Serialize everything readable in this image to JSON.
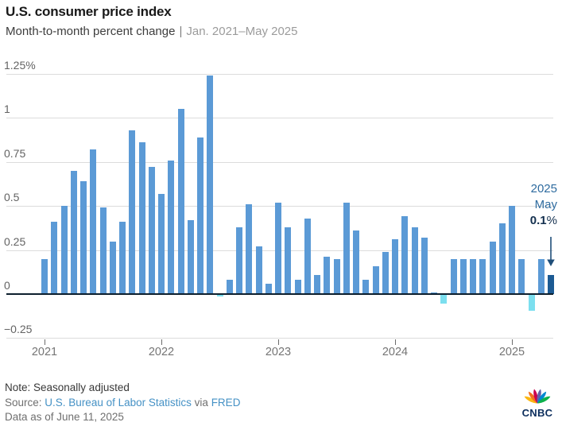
{
  "header": {
    "title": "U.S. consumer price index",
    "subtitle": "Month-to-month percent change",
    "separator": "|",
    "date_range": "Jan. 2021–May 2025"
  },
  "chart_data": {
    "type": "bar",
    "title": "U.S. consumer price index",
    "subtitle": "Month-to-month percent change | Jan. 2021–May 2025",
    "unit": "percent",
    "grid": true,
    "ylim": [
      -0.35,
      1.3
    ],
    "x": [
      "Jan 2021",
      "Feb 2021",
      "Mar 2021",
      "Apr 2021",
      "May 2021",
      "Jun 2021",
      "Jul 2021",
      "Aug 2021",
      "Sep 2021",
      "Oct 2021",
      "Nov 2021",
      "Dec 2021",
      "Jan 2022",
      "Feb 2022",
      "Mar 2022",
      "Apr 2022",
      "May 2022",
      "Jun 2022",
      "Jul 2022",
      "Aug 2022",
      "Sep 2022",
      "Oct 2022",
      "Nov 2022",
      "Dec 2022",
      "Jan 2023",
      "Feb 2023",
      "Mar 2023",
      "Apr 2023",
      "May 2023",
      "Jun 2023",
      "Jul 2023",
      "Aug 2023",
      "Sep 2023",
      "Oct 2023",
      "Nov 2023",
      "Dec 2023",
      "Jan 2024",
      "Feb 2024",
      "Mar 2024",
      "Apr 2024",
      "May 2024",
      "Jun 2024",
      "Jul 2024",
      "Aug 2024",
      "Sep 2024",
      "Oct 2024",
      "Nov 2024",
      "Dec 2024",
      "Jan 2025",
      "Feb 2025",
      "Mar 2025",
      "Apr 2025",
      "May 2025"
    ],
    "values": [
      0.2,
      0.41,
      0.5,
      0.7,
      0.64,
      0.82,
      0.49,
      0.3,
      0.41,
      0.93,
      0.86,
      0.72,
      0.57,
      0.76,
      1.05,
      0.42,
      0.89,
      1.24,
      -0.01,
      0.08,
      0.38,
      0.51,
      0.27,
      0.06,
      0.52,
      0.38,
      0.08,
      0.43,
      0.11,
      0.21,
      0.2,
      0.52,
      0.36,
      0.08,
      0.16,
      0.24,
      0.31,
      0.44,
      0.38,
      0.32,
      0.01,
      -0.05,
      0.2,
      0.2,
      0.2,
      0.2,
      0.3,
      0.4,
      0.5,
      0.2,
      -0.09,
      0.2,
      0.11
    ],
    "y_ticks": [
      {
        "label": "1.25%",
        "value": 1.25
      },
      {
        "label": "1",
        "value": 1
      },
      {
        "label": "0.75",
        "value": 0.75
      },
      {
        "label": "0.5",
        "value": 0.5
      },
      {
        "label": "0.25",
        "value": 0.25
      },
      {
        "label": "0",
        "value": 0
      },
      {
        "label": "−0.25",
        "value": -0.25
      }
    ],
    "x_ticks": [
      {
        "label": "2021",
        "month_index": 0
      },
      {
        "label": "2022",
        "month_index": 12
      },
      {
        "label": "2023",
        "month_index": 24
      },
      {
        "label": "2024",
        "month_index": 36
      },
      {
        "label": "2025",
        "month_index": 48
      }
    ],
    "colors": {
      "bar": "#5b9ad6",
      "negative": "#7cdfef",
      "highlight": "#1c5a93",
      "axis": "#0d1f2d",
      "gridline": "#dcdcdc",
      "annotation": "#2e6b9f",
      "annotation_value": "#132f4e"
    },
    "annotation": {
      "year": "2025",
      "month": "May",
      "value": "0.1",
      "unit": "%"
    }
  },
  "footer": {
    "note": "Note: Seasonally adjusted",
    "source_prefix": "Source:",
    "source_link_1": "U.S. Bureau of Labor Statistics",
    "source_middle": "via",
    "source_link_2": "FRED",
    "data_as_of": "Data as of June 11, 2025",
    "logo_text": "CNBC",
    "logo_colors": [
      "#fcb711",
      "#f37021",
      "#cc004c",
      "#6460aa",
      "#0089d0",
      "#0db14b"
    ]
  }
}
